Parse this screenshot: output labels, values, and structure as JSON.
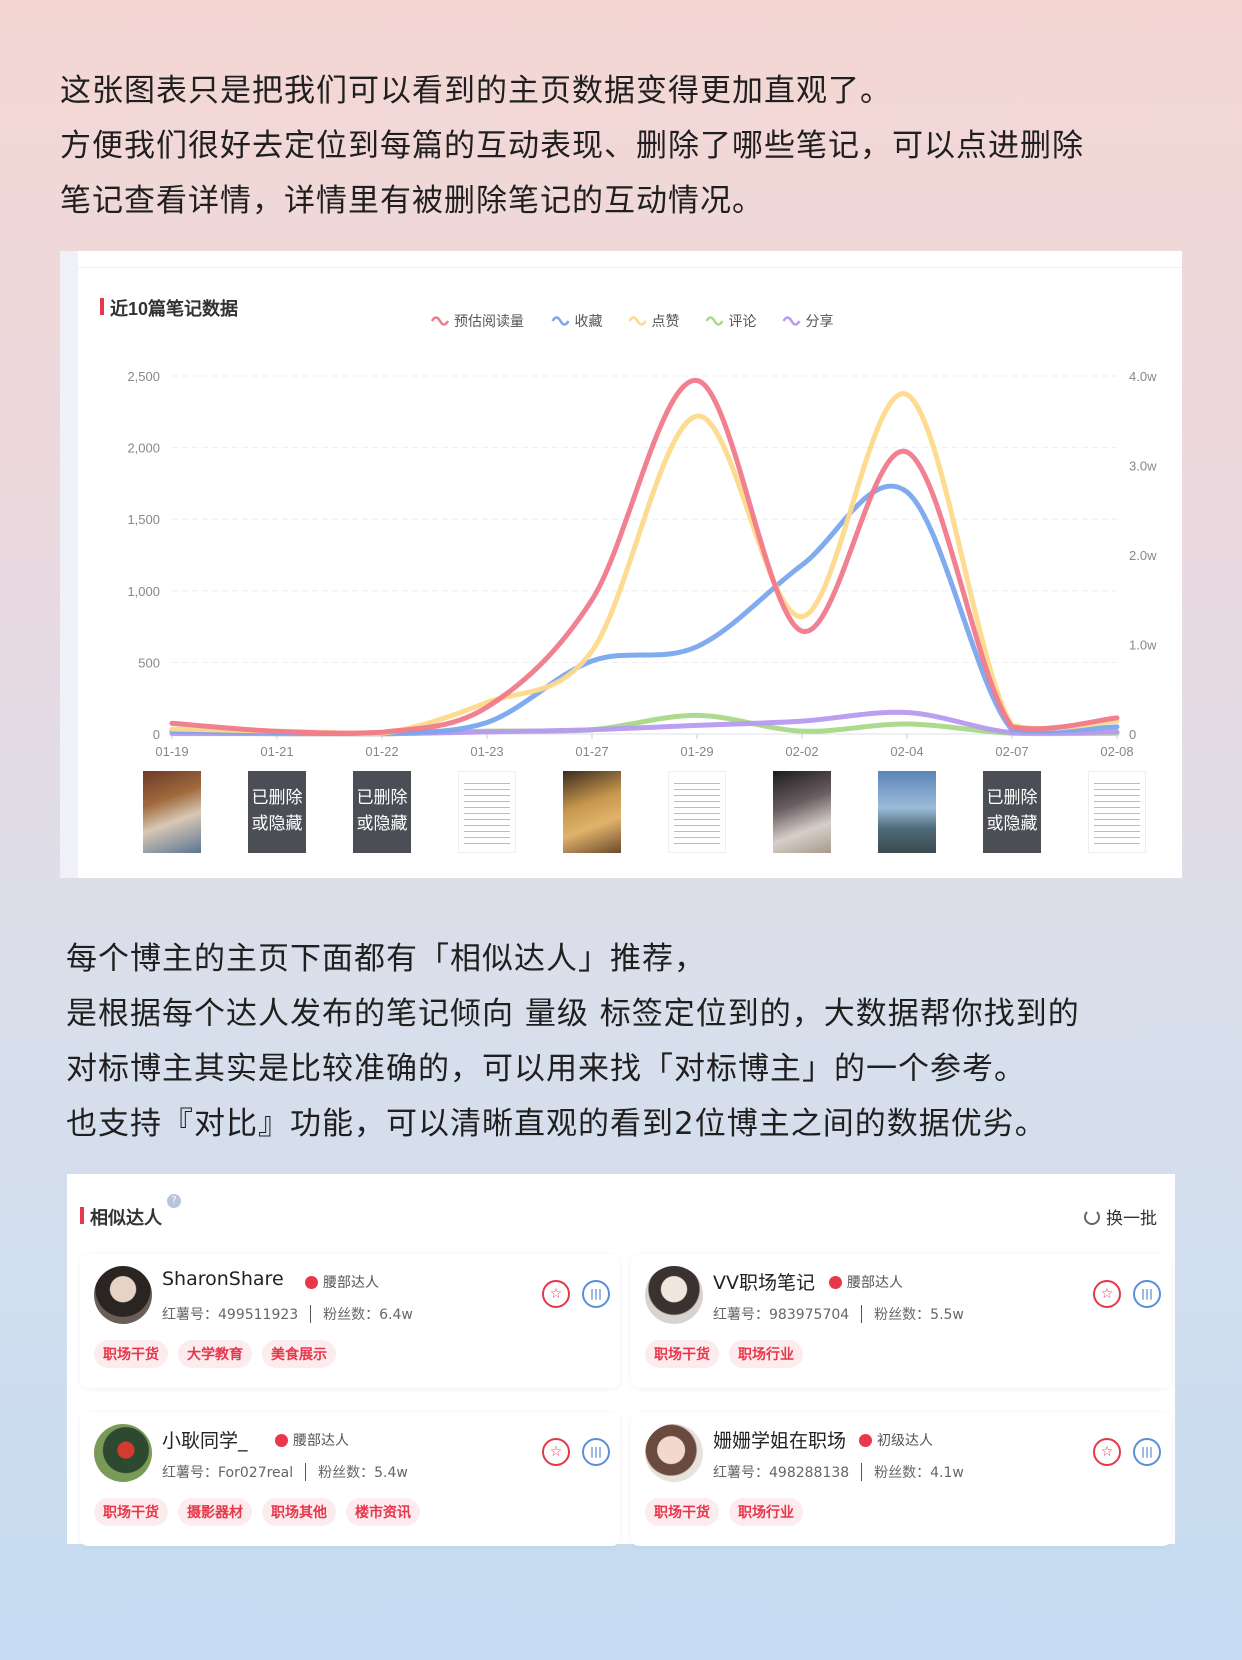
{
  "intro": {
    "lines": [
      "这张图表只是把我们可以看到的主页数据变得更加直观了。",
      "方便我们很好去定位到每篇的互动表现、删除了哪些笔记，可以点进删除",
      "笔记查看详情，详情里有被删除笔记的互动情况。"
    ]
  },
  "chart_panel": {
    "title": "近10篇笔记数据",
    "thumbnails": [
      {
        "kind": "photo",
        "label": ""
      },
      {
        "kind": "deleted",
        "label": "已删除或隐藏"
      },
      {
        "kind": "deleted",
        "label": "已删除或隐藏"
      },
      {
        "kind": "text",
        "label": ""
      },
      {
        "kind": "photo",
        "label": ""
      },
      {
        "kind": "text",
        "label": ""
      },
      {
        "kind": "photo",
        "label": ""
      },
      {
        "kind": "photo",
        "label": ""
      },
      {
        "kind": "deleted",
        "label": "已删除或隐藏"
      },
      {
        "kind": "text",
        "label": ""
      }
    ],
    "deleted_line1": "已删除",
    "deleted_line2": "或隐藏"
  },
  "chart_data": {
    "type": "line",
    "x": [
      "01-19",
      "01-21",
      "01-22",
      "01-23",
      "01-27",
      "01-29",
      "02-02",
      "02-04",
      "02-07",
      "02-08"
    ],
    "legend_position": "top-center",
    "grid": true,
    "y_left": {
      "ticks": [
        "0",
        "500",
        "1,000",
        "1,500",
        "2,000",
        "2,500"
      ],
      "range": [
        0,
        2500
      ]
    },
    "y_right": {
      "ticks": [
        "0",
        "1.0w",
        "2.0w",
        "3.0w",
        "4.0w"
      ],
      "range": [
        0,
        4
      ]
    },
    "series": [
      {
        "name": "预估阅读量",
        "color": "#f07a8a",
        "axis": "right",
        "values": [
          0.12,
          0.03,
          0.02,
          0.3,
          1.5,
          3.95,
          1.15,
          3.15,
          0.08,
          0.18
        ]
      },
      {
        "name": "收藏",
        "color": "#7aa6ee",
        "axis": "left",
        "values": [
          20,
          10,
          5,
          80,
          510,
          610,
          1180,
          1690,
          30,
          50
        ]
      },
      {
        "name": "点赞",
        "color": "#fdd98a",
        "axis": "left",
        "values": [
          35,
          20,
          5,
          220,
          580,
          2220,
          820,
          2370,
          60,
          90
        ]
      },
      {
        "name": "评论",
        "color": "#a8d98a",
        "axis": "left",
        "values": [
          3,
          2,
          1,
          20,
          30,
          130,
          20,
          70,
          5,
          5
        ]
      },
      {
        "name": "分享",
        "color": "#b89af0",
        "axis": "left",
        "values": [
          5,
          3,
          2,
          15,
          30,
          60,
          90,
          150,
          10,
          15
        ]
      }
    ]
  },
  "intro2": {
    "lines": [
      "每个博主的主页下面都有「相似达人」推荐，",
      "是根据每个达人发布的笔记倾向 量级 标签定位到的，大数据帮你找到的",
      "对标博主其实是比较准确的，可以用来找「对标博主」的一个参考。",
      "也支持『对比』功能，可以清晰直观的看到2位博主之间的数据优劣。"
    ]
  },
  "similar": {
    "title": "相似达人",
    "refresh_label": "换一批",
    "cards": [
      {
        "name": "SharonShare",
        "level": "腰部达人",
        "red_id": "红薯号：499511923",
        "fans": "粉丝数：6.4w",
        "tags": [
          "职场干货",
          "大学教育",
          "美食展示"
        ]
      },
      {
        "name": "VV职场笔记",
        "level": "腰部达人",
        "red_id": "红薯号：983975704",
        "fans": "粉丝数：5.5w",
        "tags": [
          "职场干货",
          "职场行业"
        ]
      },
      {
        "name": "小耿同学_",
        "level": "腰部达人",
        "red_id": "红薯号：For027real",
        "fans": "粉丝数：5.4w",
        "tags": [
          "职场干货",
          "摄影器材",
          "职场其他",
          "楼市资讯"
        ]
      },
      {
        "name": "姗姗学姐在职场",
        "level": "初级达人",
        "red_id": "红薯号：498288138",
        "fans": "粉丝数：4.1w",
        "tags": [
          "职场干货",
          "职场行业"
        ]
      }
    ]
  }
}
